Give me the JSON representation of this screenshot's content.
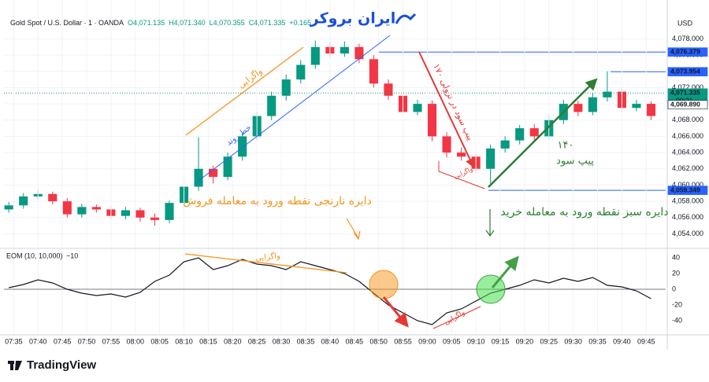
{
  "brand": "TradingView",
  "watermark": "ایران بروکر",
  "chart_data": [
    {
      "type": "candlestick",
      "title": "Gold Spot / U.S. Dollar · 1 · OANDA",
      "header_values": [
        "O4,071.135",
        "H4,071.340",
        "L4,070.355",
        "C4,071.335",
        "+0.165"
      ],
      "currency": "USD",
      "up_color": "#089981",
      "down_color": "#f23645",
      "x": [
        4,
        7,
        10,
        13,
        16,
        19,
        22,
        25,
        28,
        31,
        34,
        37,
        40,
        43,
        46,
        49,
        52,
        55,
        58,
        61,
        64,
        67,
        70,
        73,
        76,
        79,
        82,
        85,
        88,
        91,
        94,
        97,
        100,
        103,
        106,
        109,
        112,
        115,
        118,
        121,
        124,
        127,
        130,
        133,
        136
      ],
      "open": [
        4057.0,
        4057.5,
        4058.6,
        4058.9,
        4058.0,
        4056.4,
        4057.3,
        4057.0,
        4056.2,
        4056.9,
        4056.0,
        4055.7,
        4057.8,
        4059.8,
        4062.0,
        4061.0,
        4063.5,
        4066.0,
        4068.5,
        4071.0,
        4073.0,
        4074.8,
        4077.0,
        4076.2,
        4077.0,
        4075.5,
        4072.5,
        4071.0,
        4069.0,
        4070.0,
        4066.0,
        4064.0,
        4063.5,
        4062.0,
        4064.5,
        4065.5,
        4067.0,
        4066.0,
        4068.0,
        4070.0,
        4069.0,
        4070.8,
        4071.5,
        4069.5,
        4070.0
      ],
      "high": [
        4057.9,
        4059.0,
        4059.4,
        4059.2,
        4058.4,
        4057.7,
        4057.6,
        4057.4,
        4057.3,
        4057.2,
        4056.5,
        4058.1,
        4060.3,
        4065.9,
        4062.4,
        4064.0,
        4066.5,
        4069.0,
        4071.5,
        4073.6,
        4075.4,
        4077.8,
        4077.6,
        4077.7,
        4077.4,
        4076.0,
        4073.0,
        4071.4,
        4070.5,
        4070.4,
        4066.5,
        4064.6,
        4064.0,
        4065.0,
        4066.0,
        4067.4,
        4067.5,
        4068.6,
        4070.5,
        4070.4,
        4071.3,
        4074.0,
        4072.0,
        4070.5,
        4070.3
      ],
      "low": [
        4056.6,
        4057.1,
        4058.2,
        4057.6,
        4056.0,
        4056.0,
        4056.6,
        4055.8,
        4055.8,
        4055.5,
        4055.0,
        4055.3,
        4057.4,
        4059.3,
        4060.2,
        4060.6,
        4063.0,
        4065.5,
        4068.0,
        4070.4,
        4072.5,
        4074.3,
        4075.7,
        4075.8,
        4075.0,
        4072.0,
        4070.5,
        4068.5,
        4068.6,
        4065.4,
        4063.4,
        4063.0,
        4061.5,
        4060.2,
        4064.0,
        4065.0,
        4065.5,
        4065.6,
        4067.5,
        4068.5,
        4068.6,
        4070.3,
        4069.0,
        4069.1,
        4068.0
      ],
      "close": [
        4057.5,
        4058.6,
        4058.9,
        4058.0,
        4056.4,
        4057.3,
        4057.0,
        4056.2,
        4056.9,
        4056.0,
        4055.7,
        4057.8,
        4059.8,
        4062.0,
        4061.0,
        4063.5,
        4066.0,
        4068.5,
        4071.0,
        4073.0,
        4074.8,
        4077.0,
        4076.2,
        4077.0,
        4075.5,
        4072.5,
        4071.0,
        4069.0,
        4070.0,
        4066.0,
        4064.0,
        4063.5,
        4062.0,
        4064.5,
        4065.5,
        4067.0,
        4066.0,
        4068.0,
        4070.0,
        4069.0,
        4070.8,
        4071.5,
        4069.5,
        4070.0,
        4068.5
      ],
      "xlim": [
        3,
        139
      ],
      "ylim": [
        4052.3,
        4079.4
      ],
      "yticks": [
        {
          "value": 4054,
          "label": "4,054.000"
        },
        {
          "value": 4056,
          "label": "4,056.000"
        },
        {
          "value": 4058,
          "label": "4,058.000"
        },
        {
          "value": 4060,
          "label": "4,060.000"
        },
        {
          "value": 4062,
          "label": "4,062.000"
        },
        {
          "value": 4064,
          "label": "4,064.000"
        },
        {
          "value": 4066,
          "label": "4,066.000"
        },
        {
          "value": 4068,
          "label": "4,068.000"
        },
        {
          "value": 4070,
          "label": "4,070.000"
        },
        {
          "value": 4072,
          "label": "4,072.000"
        },
        {
          "value": 4074,
          "label": "4,074.000"
        },
        {
          "value": 4076,
          "label": "4,076.000"
        },
        {
          "value": 4078,
          "label": "4,078.000"
        }
      ],
      "grid": true,
      "price_lines": [
        {
          "value": 4076.379,
          "label": "4,076.379",
          "color": "#2962ff",
          "line": "solid"
        },
        {
          "value": 4073.954,
          "label": "4,073.954",
          "color": "#2962ff",
          "line": "solid"
        },
        {
          "value": 4071.335,
          "label": "4,071.335",
          "countdown": "00:21",
          "color": "#089981",
          "line": "dotted"
        },
        {
          "value": 4069.89,
          "label": "4,069.890",
          "color": "#ffffff",
          "line": "none"
        },
        {
          "value": 4059.349,
          "label": "4,059.349",
          "color": "#2962ff",
          "line": "solid"
        }
      ],
      "annotations": [
        {
          "text": "واگرایی",
          "color": "#f7931a"
        },
        {
          "text": "خط روند",
          "color": "#2962ff"
        },
        {
          "text": "۱۷۰ پیپ سود در نزولی",
          "color": "#e53935"
        },
        {
          "text": "واگرایی",
          "color": "#e53935"
        },
        {
          "text": "۱۴۰",
          "color": "#2e7d32"
        },
        {
          "text": "پیپ سود",
          "color": "#2e7d32"
        },
        {
          "text": "دایره نارنجی نقطه ورود به معامله فروش",
          "color": "#f7931a"
        },
        {
          "text": "دایره سبز نقطه ورود به معامله خرید",
          "color": "#2e7d32"
        }
      ]
    },
    {
      "type": "line",
      "title": "EOM (10, 10,000)",
      "subtitle": "−10",
      "color": "#131722",
      "x": [
        4,
        7,
        10,
        13,
        16,
        19,
        22,
        25,
        28,
        31,
        34,
        37,
        40,
        43,
        46,
        49,
        52,
        55,
        58,
        61,
        64,
        67,
        70,
        73,
        76,
        79,
        82,
        85,
        88,
        91,
        94,
        97,
        100,
        103,
        106,
        109,
        112,
        115,
        118,
        121,
        124,
        127,
        130,
        133,
        136
      ],
      "values": [
        2,
        6,
        12,
        8,
        0,
        -5,
        -8,
        -6,
        -10,
        -4,
        10,
        18,
        35,
        40,
        25,
        30,
        38,
        32,
        30,
        25,
        35,
        30,
        25,
        20,
        10,
        -5,
        -20,
        -30,
        -40,
        -45,
        -30,
        -25,
        -15,
        -5,
        0,
        5,
        12,
        8,
        14,
        10,
        15,
        5,
        3,
        -2,
        -12
      ],
      "xlim": [
        3,
        139
      ],
      "ylim": [
        -57,
        50
      ],
      "yticks": [
        40,
        20,
        0,
        -20,
        -40
      ],
      "xticks": [
        {
          "value": 5,
          "label": "07:35"
        },
        {
          "value": 10,
          "label": "07:40"
        },
        {
          "value": 15,
          "label": "07:45"
        },
        {
          "value": 20,
          "label": "07:50"
        },
        {
          "value": 25,
          "label": "07:55"
        },
        {
          "value": 30,
          "label": "08:00"
        },
        {
          "value": 35,
          "label": "08:05"
        },
        {
          "value": 40,
          "label": "08:10"
        },
        {
          "value": 45,
          "label": "08:15"
        },
        {
          "value": 50,
          "label": "08:20"
        },
        {
          "value": 55,
          "label": "08:25"
        },
        {
          "value": 60,
          "label": "08:30"
        },
        {
          "value": 65,
          "label": "08:35"
        },
        {
          "value": 70,
          "label": "08:40"
        },
        {
          "value": 75,
          "label": "08:45"
        },
        {
          "value": 80,
          "label": "08:50"
        },
        {
          "value": 85,
          "label": "08:55"
        },
        {
          "value": 90,
          "label": "09:00"
        },
        {
          "value": 95,
          "label": "09:05"
        },
        {
          "value": 100,
          "label": "09:10"
        },
        {
          "value": 105,
          "label": "09:15"
        },
        {
          "value": 110,
          "label": "09:20"
        },
        {
          "value": 115,
          "label": "09:25"
        },
        {
          "value": 120,
          "label": "09:30"
        },
        {
          "value": 125,
          "label": "09:35"
        },
        {
          "value": 130,
          "label": "09:40"
        },
        {
          "value": 135,
          "label": "09:45"
        }
      ],
      "zero_line": true,
      "annotations": [
        {
          "text": "واگرایی",
          "color": "#f7931a"
        },
        {
          "text": "واگرایی",
          "color": "#e53935"
        }
      ]
    }
  ]
}
